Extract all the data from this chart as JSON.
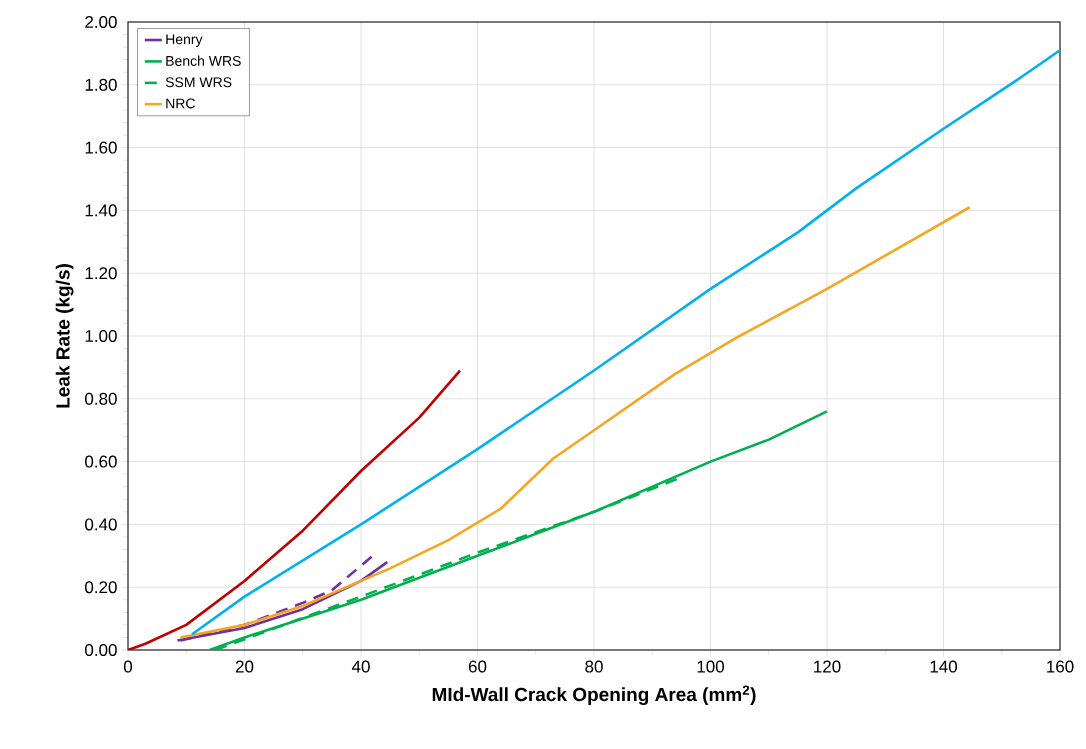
{
  "chart_data": {
    "type": "line",
    "xlabel": "MId-Wall Crack Opening Area (mm$^{2}$)",
    "ylabel": "Leak Rate (kg/s)",
    "xlim": [
      0,
      160
    ],
    "xticks": [
      0,
      20,
      40,
      60,
      80,
      100,
      120,
      140,
      160
    ],
    "ylim": [
      0,
      2
    ],
    "yticks": [
      {
        "value": 0,
        "label": "0.00"
      },
      {
        "value": 0.2,
        "label": "0.20"
      },
      {
        "value": 0.4,
        "label": "0.40"
      },
      {
        "value": 0.6,
        "label": "0.60"
      },
      {
        "value": 0.8,
        "label": "0.80"
      },
      {
        "value": 1,
        "label": "1.00"
      },
      {
        "value": 1.2,
        "label": "1.20"
      },
      {
        "value": 1.4,
        "label": "1.40"
      },
      {
        "value": 1.6,
        "label": "1.60"
      },
      {
        "value": 1.8,
        "label": "1.80"
      },
      {
        "value": 2,
        "label": "2.00"
      }
    ],
    "grid": true,
    "legend": "top left",
    "line_style": "solid",
    "series": [
      {
        "name": "Henry",
        "color": "#7030a0",
        "x": [
          8.5,
          20,
          30,
          40,
          44.5
        ],
        "values": [
          0.03,
          0.07,
          0.13,
          0.22,
          0.28
        ]
      },
      {
        "color": "#7030a0",
        "line_style": "dashed",
        "x": [
          9,
          20,
          30,
          35,
          42
        ],
        "values": [
          0.03,
          0.08,
          0.15,
          0.19,
          0.3
        ]
      },
      {
        "name": "Bench WRS",
        "color": "#00b050",
        "x": [
          14,
          20,
          40,
          60,
          80,
          100,
          110,
          120
        ],
        "values": [
          0,
          0.04,
          0.16,
          0.3,
          0.44,
          0.6,
          0.67,
          0.76
        ]
      },
      {
        "name": "SSM WRS",
        "color": "#00b050",
        "line_style": "dashed",
        "x": [
          15,
          40,
          60,
          80,
          95
        ],
        "values": [
          0,
          0.17,
          0.31,
          0.44,
          0.55
        ]
      },
      {
        "name": "NRC",
        "color": "#f5a623",
        "x": [
          9,
          20,
          30,
          40,
          45,
          55,
          64,
          73,
          80,
          94,
          105,
          120,
          144.5
        ],
        "values": [
          0.04,
          0.08,
          0.14,
          0.22,
          0.26,
          0.35,
          0.45,
          0.61,
          0.7,
          0.88,
          1,
          1.15,
          1.41
        ]
      },
      {
        "color": "#00b0f0",
        "x": [
          11,
          20,
          40,
          60,
          80,
          100,
          115,
          125,
          140,
          153,
          160
        ],
        "values": [
          0.05,
          0.17,
          0.4,
          0.64,
          0.89,
          1.15,
          1.33,
          1.47,
          1.66,
          1.82,
          1.91
        ]
      },
      {
        "color": "#c00000",
        "x": [
          0,
          3,
          10,
          15,
          20,
          30,
          40,
          50,
          57
        ],
        "values": [
          0,
          0.02,
          0.08,
          0.15,
          0.22,
          0.38,
          0.57,
          0.74,
          0.89
        ]
      }
    ]
  }
}
